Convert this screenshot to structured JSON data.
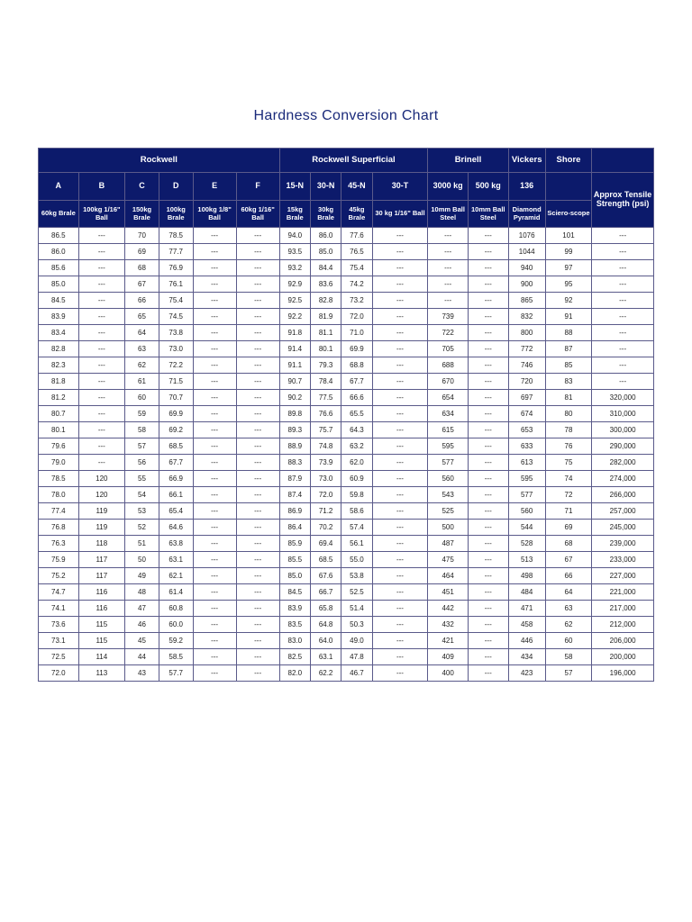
{
  "title": "Hardness Conversion Chart",
  "colors": {
    "header_bg": "#0c1a6b",
    "header_fg": "#ffffff",
    "title_color": "#1a2a7a",
    "border": "#5a5a8a",
    "page_bg": "#ffffff"
  },
  "groups": {
    "rockwell": "Rockwell",
    "rockwell_sup": "Rockwell Superficial",
    "brinell": "Brinell",
    "vickers": "Vickers",
    "shore": "Shore",
    "tensile": "Approx Tensile Strength (psi)"
  },
  "scales": {
    "a": "A",
    "b": "B",
    "c": "C",
    "d": "D",
    "e": "E",
    "f": "F",
    "n15": "15-N",
    "n30": "30-N",
    "n45": "45-N",
    "t30": "30-T",
    "b3000": "3000 kg",
    "b500": "500 kg",
    "v136": "136"
  },
  "subs": {
    "a": "60kg Brale",
    "b": "100kg 1/16\" Ball",
    "c": "150kg Brale",
    "d": "100kg Brale",
    "e": "100kg 1/8\" Ball",
    "f": "60kg 1/16\" Ball",
    "n15": "15kg Brale",
    "n30": "30kg Brale",
    "n45": "45kg Brale",
    "t30": "30 kg 1/16\" Ball",
    "b3000": "10mm Ball Steel",
    "b500": "10mm Ball Steel",
    "v136": "Diamond Pyramid",
    "shore": "Sciero-scope"
  },
  "rows": [
    [
      "86.5",
      "---",
      "70",
      "78.5",
      "---",
      "---",
      "94.0",
      "86.0",
      "77.6",
      "---",
      "---",
      "---",
      "1076",
      "101",
      "---"
    ],
    [
      "86.0",
      "---",
      "69",
      "77.7",
      "---",
      "---",
      "93.5",
      "85.0",
      "76.5",
      "---",
      "---",
      "---",
      "1044",
      "99",
      "---"
    ],
    [
      "85.6",
      "---",
      "68",
      "76.9",
      "---",
      "---",
      "93.2",
      "84.4",
      "75.4",
      "---",
      "---",
      "---",
      "940",
      "97",
      "---"
    ],
    [
      "85.0",
      "---",
      "67",
      "76.1",
      "---",
      "---",
      "92.9",
      "83.6",
      "74.2",
      "---",
      "---",
      "---",
      "900",
      "95",
      "---"
    ],
    [
      "84.5",
      "---",
      "66",
      "75.4",
      "---",
      "---",
      "92.5",
      "82.8",
      "73.2",
      "---",
      "---",
      "---",
      "865",
      "92",
      "---"
    ],
    [
      "83.9",
      "---",
      "65",
      "74.5",
      "---",
      "---",
      "92.2",
      "81.9",
      "72.0",
      "---",
      "739",
      "---",
      "832",
      "91",
      "---"
    ],
    [
      "83.4",
      "---",
      "64",
      "73.8",
      "---",
      "---",
      "91.8",
      "81.1",
      "71.0",
      "---",
      "722",
      "---",
      "800",
      "88",
      "---"
    ],
    [
      "82.8",
      "---",
      "63",
      "73.0",
      "---",
      "---",
      "91.4",
      "80.1",
      "69.9",
      "---",
      "705",
      "---",
      "772",
      "87",
      "---"
    ],
    [
      "82.3",
      "---",
      "62",
      "72.2",
      "---",
      "---",
      "91.1",
      "79.3",
      "68.8",
      "---",
      "688",
      "---",
      "746",
      "85",
      "---"
    ],
    [
      "81.8",
      "---",
      "61",
      "71.5",
      "---",
      "---",
      "90.7",
      "78.4",
      "67.7",
      "---",
      "670",
      "---",
      "720",
      "83",
      "---"
    ],
    [
      "81.2",
      "---",
      "60",
      "70.7",
      "---",
      "---",
      "90.2",
      "77.5",
      "66.6",
      "---",
      "654",
      "---",
      "697",
      "81",
      "320,000"
    ],
    [
      "80.7",
      "---",
      "59",
      "69.9",
      "---",
      "---",
      "89.8",
      "76.6",
      "65.5",
      "---",
      "634",
      "---",
      "674",
      "80",
      "310,000"
    ],
    [
      "80.1",
      "---",
      "58",
      "69.2",
      "---",
      "---",
      "89.3",
      "75.7",
      "64.3",
      "---",
      "615",
      "---",
      "653",
      "78",
      "300,000"
    ],
    [
      "79.6",
      "---",
      "57",
      "68.5",
      "---",
      "---",
      "88.9",
      "74.8",
      "63.2",
      "---",
      "595",
      "---",
      "633",
      "76",
      "290,000"
    ],
    [
      "79.0",
      "---",
      "56",
      "67.7",
      "---",
      "---",
      "88.3",
      "73.9",
      "62.0",
      "---",
      "577",
      "---",
      "613",
      "75",
      "282,000"
    ],
    [
      "78.5",
      "120",
      "55",
      "66.9",
      "---",
      "---",
      "87.9",
      "73.0",
      "60.9",
      "---",
      "560",
      "---",
      "595",
      "74",
      "274,000"
    ],
    [
      "78.0",
      "120",
      "54",
      "66.1",
      "---",
      "---",
      "87.4",
      "72.0",
      "59.8",
      "---",
      "543",
      "---",
      "577",
      "72",
      "266,000"
    ],
    [
      "77.4",
      "119",
      "53",
      "65.4",
      "---",
      "---",
      "86.9",
      "71.2",
      "58.6",
      "---",
      "525",
      "---",
      "560",
      "71",
      "257,000"
    ],
    [
      "76.8",
      "119",
      "52",
      "64.6",
      "---",
      "---",
      "86.4",
      "70.2",
      "57.4",
      "---",
      "500",
      "---",
      "544",
      "69",
      "245,000"
    ],
    [
      "76.3",
      "118",
      "51",
      "63.8",
      "---",
      "---",
      "85.9",
      "69.4",
      "56.1",
      "---",
      "487",
      "---",
      "528",
      "68",
      "239,000"
    ],
    [
      "75.9",
      "117",
      "50",
      "63.1",
      "---",
      "---",
      "85.5",
      "68.5",
      "55.0",
      "---",
      "475",
      "---",
      "513",
      "67",
      "233,000"
    ],
    [
      "75.2",
      "117",
      "49",
      "62.1",
      "---",
      "---",
      "85.0",
      "67.6",
      "53.8",
      "---",
      "464",
      "---",
      "498",
      "66",
      "227,000"
    ],
    [
      "74.7",
      "116",
      "48",
      "61.4",
      "---",
      "---",
      "84.5",
      "66.7",
      "52.5",
      "---",
      "451",
      "---",
      "484",
      "64",
      "221,000"
    ],
    [
      "74.1",
      "116",
      "47",
      "60.8",
      "---",
      "---",
      "83.9",
      "65.8",
      "51.4",
      "---",
      "442",
      "---",
      "471",
      "63",
      "217,000"
    ],
    [
      "73.6",
      "115",
      "46",
      "60.0",
      "---",
      "---",
      "83.5",
      "64.8",
      "50.3",
      "---",
      "432",
      "---",
      "458",
      "62",
      "212,000"
    ],
    [
      "73.1",
      "115",
      "45",
      "59.2",
      "---",
      "---",
      "83.0",
      "64.0",
      "49.0",
      "---",
      "421",
      "---",
      "446",
      "60",
      "206,000"
    ],
    [
      "72.5",
      "114",
      "44",
      "58.5",
      "---",
      "---",
      "82.5",
      "63.1",
      "47.8",
      "---",
      "409",
      "---",
      "434",
      "58",
      "200,000"
    ],
    [
      "72.0",
      "113",
      "43",
      "57.7",
      "---",
      "---",
      "82.0",
      "62.2",
      "46.7",
      "---",
      "400",
      "---",
      "423",
      "57",
      "196,000"
    ]
  ]
}
